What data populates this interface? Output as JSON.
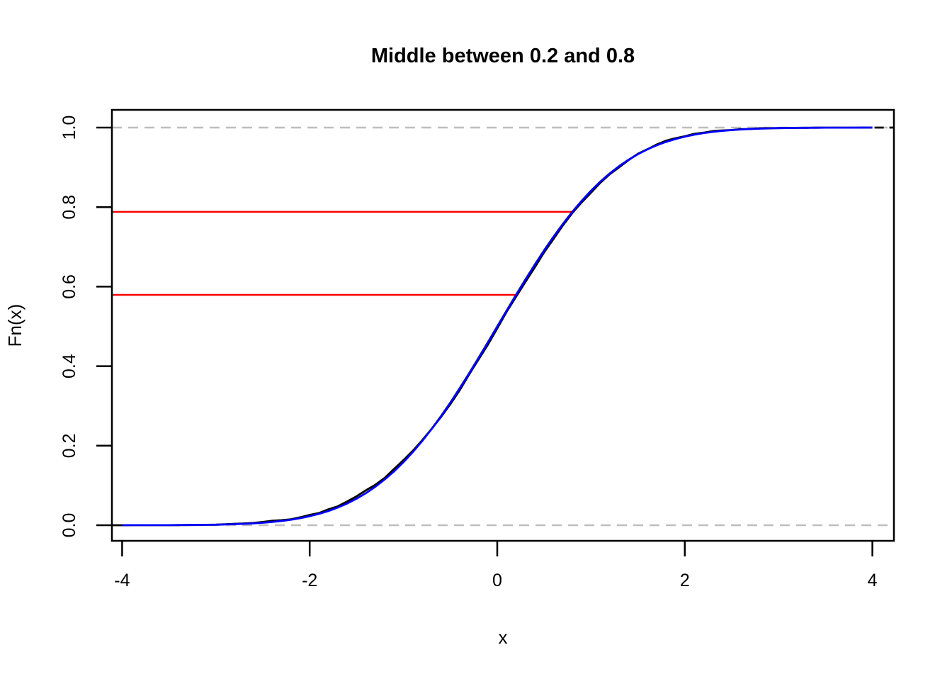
{
  "figure": {
    "title": "Middle between 0.2 and 0.8",
    "xlabel": "x",
    "ylabel": "Fn(x)"
  },
  "chart_data": {
    "type": "line",
    "title": "Middle between 0.2 and 0.8",
    "xlabel": "x",
    "ylabel": "Fn(x)",
    "xlim": [
      -4.1,
      4.23
    ],
    "ylim": [
      -0.04,
      1.04
    ],
    "grid": false,
    "legend": "none",
    "x_ticks": [
      -4,
      -2,
      0,
      2,
      4
    ],
    "x_tick_labels": [
      "-4",
      "-2",
      "0",
      "2",
      "4"
    ],
    "y_ticks": [
      0.0,
      0.2,
      0.4,
      0.6,
      0.8,
      1.0
    ],
    "y_tick_labels": [
      "0.0",
      "0.2",
      "0.4",
      "0.6",
      "0.8",
      "1.0"
    ],
    "colors": {
      "ecdf": "#000000",
      "normal_cdf": "#0000FF",
      "quantile_segments": "#FF0000",
      "reference_dashed": "#BEBEBE"
    },
    "x": [
      -4.0,
      -3.9,
      -3.8,
      -3.7,
      -3.6,
      -3.5,
      -3.4,
      -3.3,
      -3.2,
      -3.1,
      -3.0,
      -2.9,
      -2.8,
      -2.7,
      -2.6,
      -2.5,
      -2.4,
      -2.3,
      -2.2,
      -2.1,
      -2.0,
      -1.9,
      -1.8,
      -1.7,
      -1.6,
      -1.5,
      -1.4,
      -1.3,
      -1.2,
      -1.1,
      -1.0,
      -0.9,
      -0.8,
      -0.7,
      -0.6,
      -0.5,
      -0.4,
      -0.3,
      -0.2,
      -0.1,
      0.0,
      0.1,
      0.2,
      0.3,
      0.4,
      0.5,
      0.6,
      0.7,
      0.8,
      0.9,
      1.0,
      1.1,
      1.2,
      1.3,
      1.4,
      1.5,
      1.6,
      1.7,
      1.8,
      1.9,
      2.0,
      2.1,
      2.2,
      2.3,
      2.4,
      2.5,
      2.6,
      2.7,
      2.8,
      2.9,
      3.0,
      3.1,
      3.2,
      3.3,
      3.4,
      3.5,
      3.6,
      3.7,
      3.8,
      3.9,
      4.0
    ],
    "series": [
      {
        "name": "empirical-cdf",
        "color": "#000000",
        "style": "solid",
        "y": [
          0.0,
          0.0001,
          0.0001,
          0.0001,
          0.0002,
          0.0002,
          0.0003,
          0.0005,
          0.0007,
          0.001,
          0.0014,
          0.0024,
          0.0036,
          0.0045,
          0.0057,
          0.0082,
          0.0112,
          0.0127,
          0.0149,
          0.0199,
          0.0258,
          0.0307,
          0.0399,
          0.0476,
          0.0598,
          0.0728,
          0.0878,
          0.1018,
          0.1191,
          0.1417,
          0.1637,
          0.1871,
          0.2139,
          0.242,
          0.2723,
          0.3045,
          0.3396,
          0.3791,
          0.4167,
          0.4542,
          0.495,
          0.5368,
          0.5743,
          0.6119,
          0.6484,
          0.6865,
          0.7198,
          0.754,
          0.7851,
          0.8119,
          0.8363,
          0.8613,
          0.8829,
          0.9002,
          0.9182,
          0.9342,
          0.9452,
          0.9574,
          0.9671,
          0.9733,
          0.9783,
          0.9841,
          0.9871,
          0.9913,
          0.9928,
          0.9938,
          0.9963,
          0.9965,
          0.9984,
          0.9984,
          0.9987,
          0.999,
          0.9993,
          0.9995,
          0.9997,
          0.9998,
          0.9998,
          0.9999,
          0.9999,
          1.0,
          1.0
        ]
      },
      {
        "name": "normal-cdf",
        "color": "#0000FF",
        "style": "solid",
        "y": [
          0.0,
          0.0001,
          0.0001,
          0.0001,
          0.0002,
          0.0002,
          0.0003,
          0.0005,
          0.0007,
          0.001,
          0.0013,
          0.0019,
          0.0026,
          0.0035,
          0.0047,
          0.0062,
          0.0082,
          0.0107,
          0.0139,
          0.0179,
          0.0228,
          0.0287,
          0.0359,
          0.0446,
          0.0548,
          0.0668,
          0.0808,
          0.0968,
          0.1151,
          0.1357,
          0.1587,
          0.1841,
          0.2119,
          0.242,
          0.2743,
          0.3085,
          0.3446,
          0.3821,
          0.4207,
          0.4602,
          0.5,
          0.5398,
          0.5793,
          0.6179,
          0.6554,
          0.6915,
          0.7257,
          0.758,
          0.7881,
          0.8159,
          0.8413,
          0.8643,
          0.8849,
          0.9032,
          0.9192,
          0.9332,
          0.9452,
          0.9554,
          0.9641,
          0.9713,
          0.9772,
          0.9821,
          0.9861,
          0.9893,
          0.9918,
          0.9938,
          0.9953,
          0.9965,
          0.9974,
          0.9981,
          0.9987,
          0.999,
          0.9993,
          0.9995,
          0.9997,
          0.9998,
          0.9998,
          0.9999,
          0.9999,
          1.0,
          1.0
        ]
      }
    ],
    "reference_lines": [
      {
        "y": 0.0,
        "color": "#BEBEBE",
        "style": "dashed",
        "span": "plot-width"
      },
      {
        "y": 1.0,
        "color": "#BEBEBE",
        "style": "dashed",
        "span": "plot-width"
      }
    ],
    "red_segments": [
      {
        "y": 0.5793,
        "x_from": "plot-left",
        "x_to": 0.2,
        "color": "#FF0000"
      },
      {
        "y": 0.7881,
        "x_from": "plot-left",
        "x_to": 0.8,
        "color": "#FF0000"
      }
    ],
    "ecdf_right_extension": {
      "y": 1.0,
      "x_from": 4.0,
      "x_to": "plot-right",
      "color": "#000000",
      "style": "dashed"
    }
  }
}
